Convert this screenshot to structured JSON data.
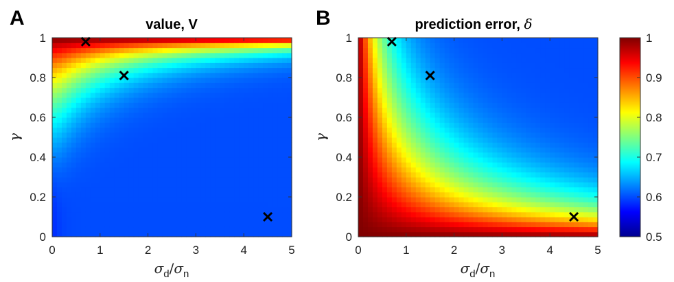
{
  "chart_data": [
    {
      "type": "heatmap",
      "panel_label": "A",
      "title": "value, V",
      "xlabel": {
        "sym": "σ",
        "sub": "d",
        "slash": "/",
        "sym2": "σ",
        "sub2": "n"
      },
      "ylabel": "γ",
      "x_ticks": [
        "0",
        "1",
        "2",
        "3",
        "4",
        "5"
      ],
      "y_ticks": [
        "0",
        "0.2",
        "0.4",
        "0.6",
        "0.8",
        "1"
      ],
      "xlim": [
        0,
        5
      ],
      "ylim": [
        0,
        1
      ],
      "clim": [
        0.5,
        1
      ],
      "colormap": "jet",
      "field": "value",
      "markers": [
        {
          "x": 0.7,
          "y": 0.98,
          "symbol": "×"
        },
        {
          "x": 1.5,
          "y": 0.81,
          "symbol": "×"
        },
        {
          "x": 4.5,
          "y": 0.1,
          "symbol": "×"
        }
      ]
    },
    {
      "type": "heatmap",
      "panel_label": "B",
      "title": "prediction error, ",
      "title_symbol": "δ",
      "xlabel": {
        "sym": "σ",
        "sub": "d",
        "slash": "/",
        "sym2": "σ",
        "sub2": "n"
      },
      "ylabel": "γ",
      "x_ticks": [
        "0",
        "1",
        "2",
        "3",
        "4",
        "5"
      ],
      "y_ticks": [
        "0",
        "0.2",
        "0.4",
        "0.6",
        "0.8",
        "1"
      ],
      "xlim": [
        0,
        5
      ],
      "ylim": [
        0,
        1
      ],
      "clim": [
        0.5,
        1
      ],
      "colormap": "jet",
      "field": "prediction_error",
      "markers": [
        {
          "x": 0.7,
          "y": 0.98,
          "symbol": "×"
        },
        {
          "x": 1.5,
          "y": 0.81,
          "symbol": "×"
        },
        {
          "x": 4.5,
          "y": 0.1,
          "symbol": "×"
        }
      ]
    }
  ],
  "colorbar": {
    "ticks": [
      "0.5",
      "0.6",
      "0.7",
      "0.8",
      "0.9",
      "1"
    ],
    "range": [
      0.5,
      1
    ],
    "colormap": "jet"
  }
}
